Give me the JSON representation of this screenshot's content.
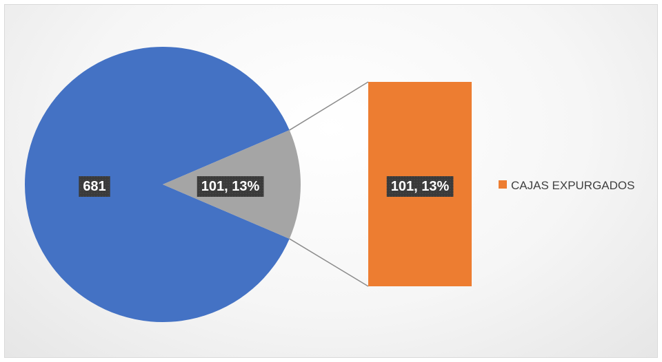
{
  "chart_data": {
    "type": "pie",
    "subtype": "pie-of-pie (bar of pie)",
    "slices": [
      {
        "label": "",
        "value": 681,
        "data_label": "681",
        "color": "#4472c4"
      },
      {
        "label": "CAJAS EXPURGADOS",
        "value": 101,
        "percent": 13,
        "data_label": "101, 13%",
        "color": "#a5a5a5"
      }
    ],
    "secondary_bar": {
      "items": [
        {
          "label": "CAJAS EXPURGADOS",
          "value": 101,
          "percent": 13,
          "data_label": "101, 13%",
          "color": "#ed7d31"
        }
      ]
    },
    "legend": {
      "position": "right",
      "entries": [
        {
          "label": "CAJAS EXPURGADOS",
          "color": "#ed7d31"
        }
      ]
    },
    "title": ""
  }
}
